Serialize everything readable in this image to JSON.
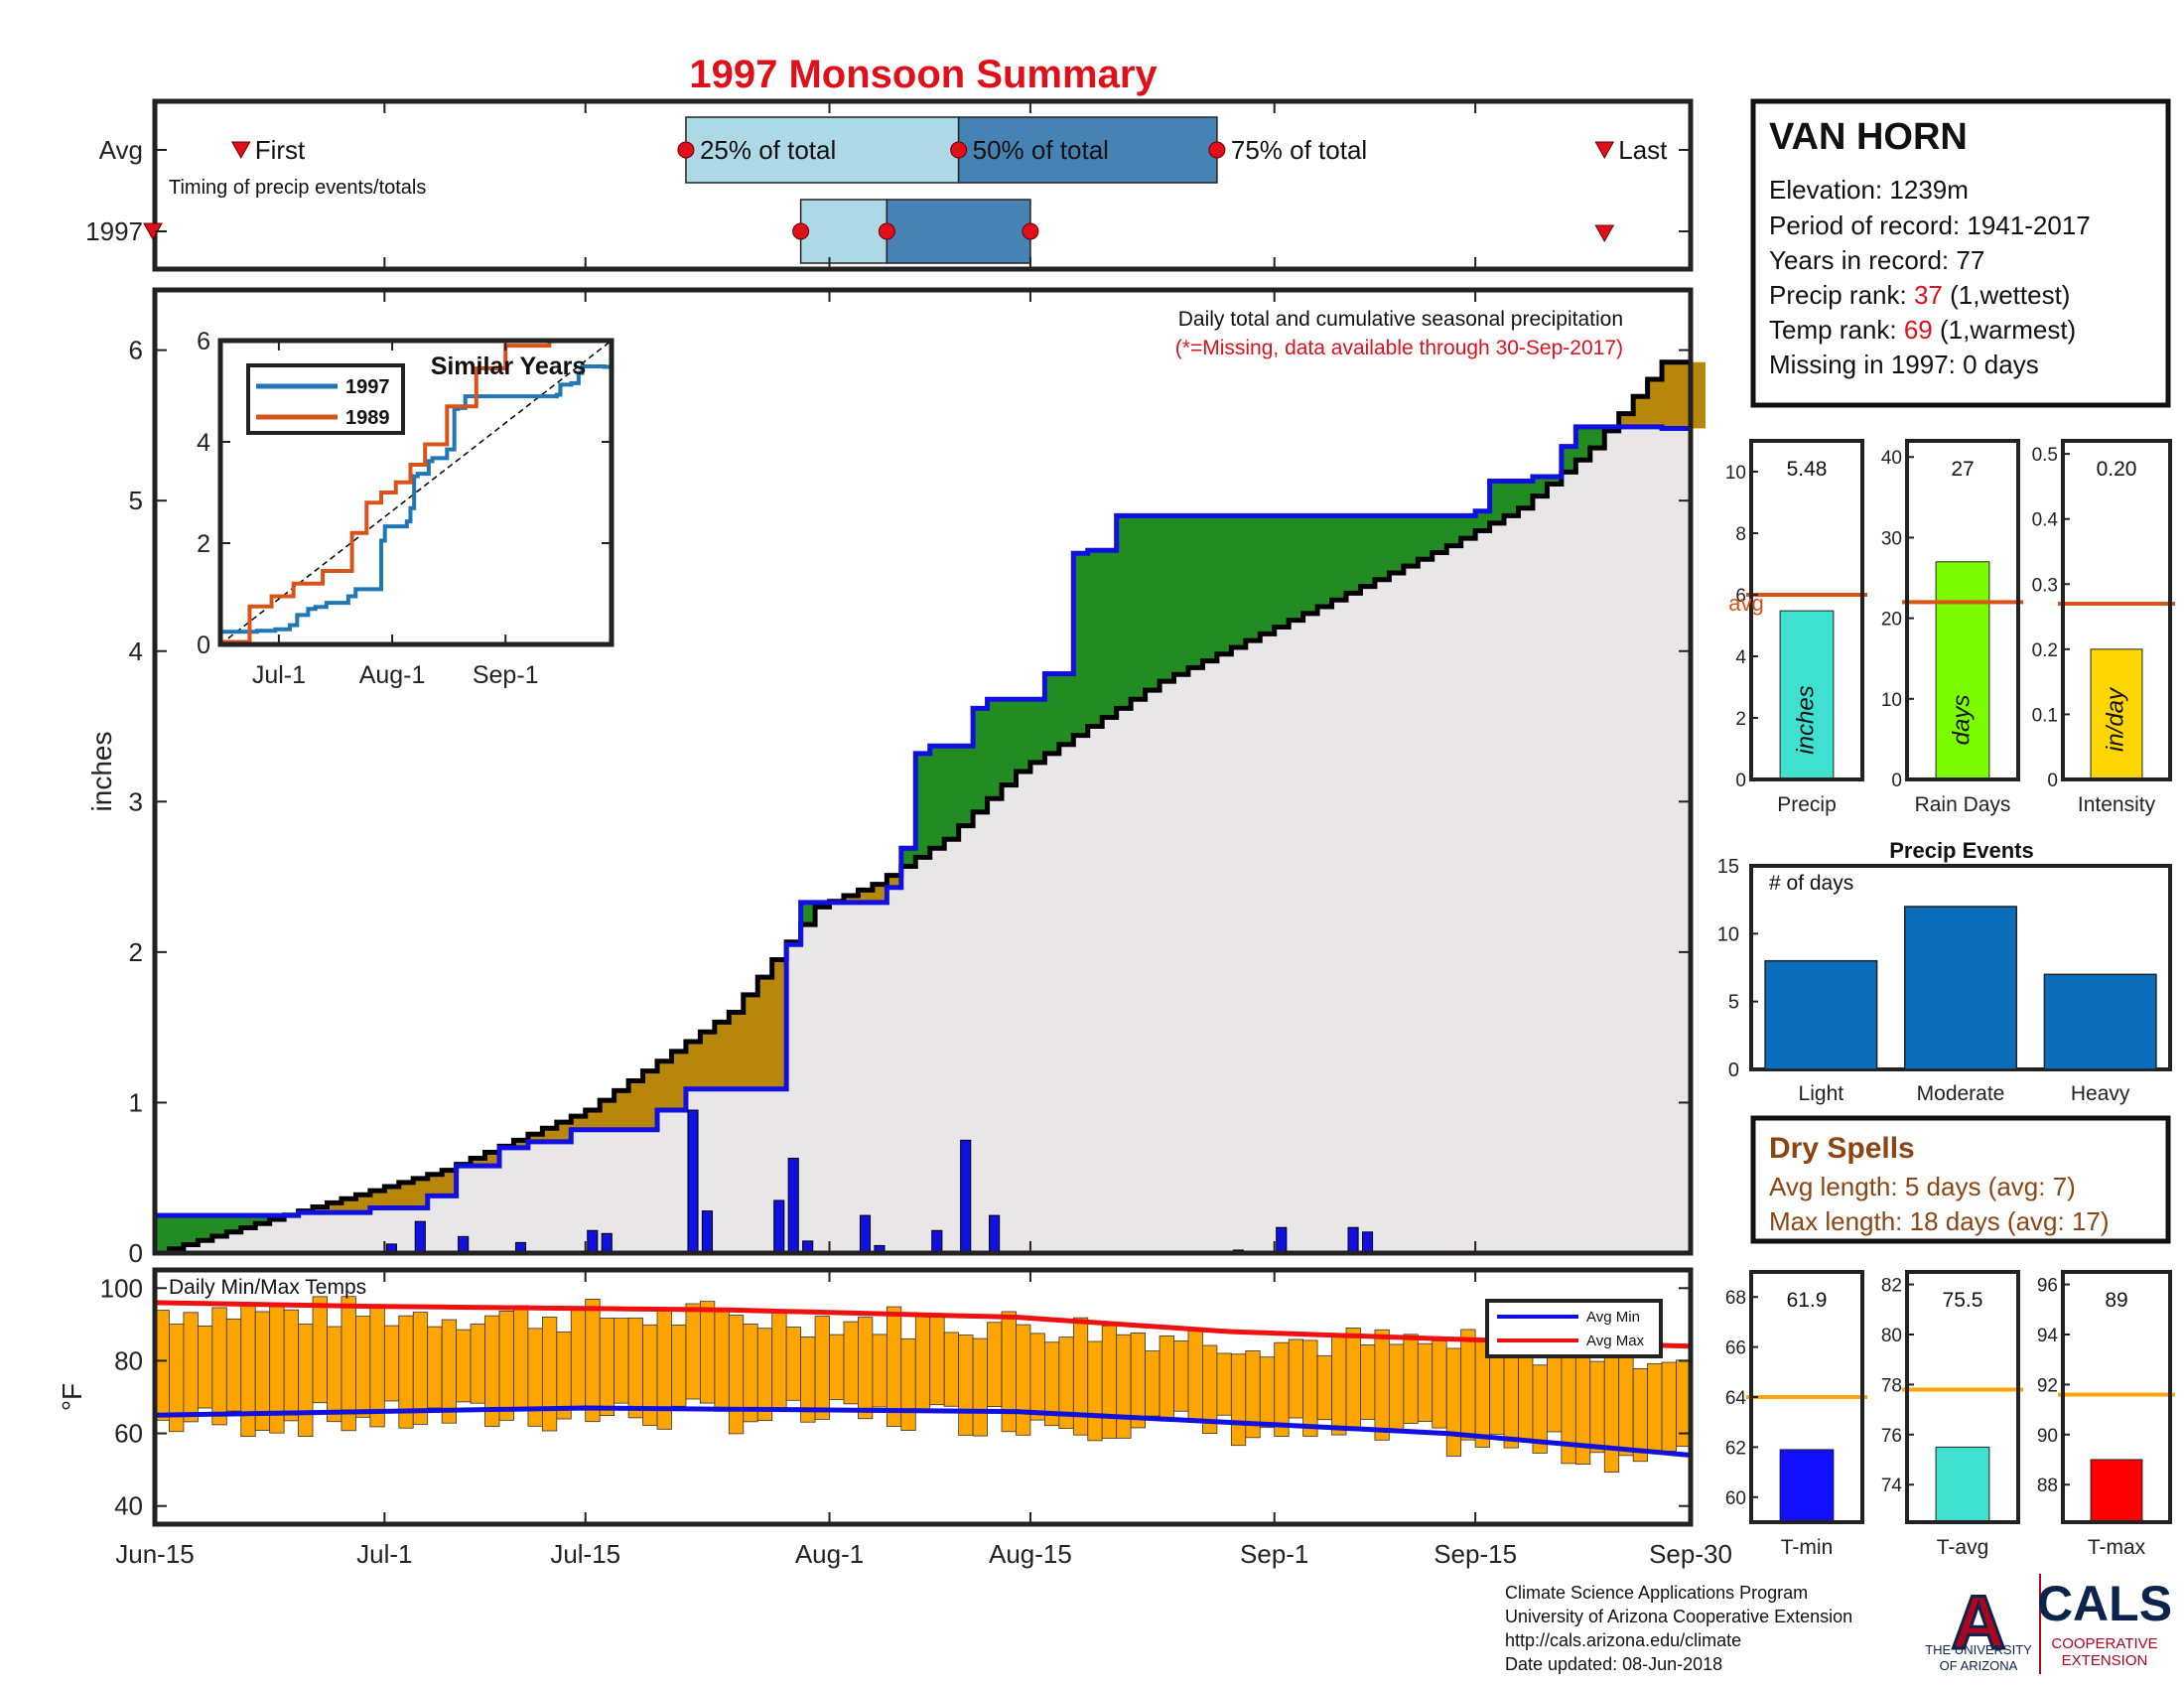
{
  "title": "1997 Monsoon Summary",
  "colors": {
    "title": "#e0101a",
    "accent_red": "#e0101a",
    "dry_brown": "#8b4513",
    "bar_blue": "#1010e0",
    "green": "#228b22",
    "tan": "#b8860b",
    "obs_line": "#1010e0",
    "avg_line": "#000000"
  },
  "station": {
    "name": "VAN HORN",
    "elev_label": "Elevation: 1239m",
    "record_label": "Period of record: 1941-2017",
    "years_label": "Years in record: 77",
    "precip_rank_prefix": "Precip rank: ",
    "precip_rank": "37",
    "precip_rank_suffix": " (1,wettest)",
    "temp_rank_prefix": "Temp rank: ",
    "temp_rank": "69",
    "temp_rank_suffix": " (1,warmest)",
    "missing_label": "Missing in 1997: 0 days"
  },
  "dry_spells": {
    "title": "Dry Spells",
    "avg_label": "Avg length: 5 days (avg: 7)",
    "max_label": "Max length: 18 days (avg: 17)"
  },
  "footer": {
    "line1": "Climate Science Applications Program",
    "line2": "University of Arizona Cooperative Extension",
    "line3": "http://cals.arizona.edu/climate",
    "line4": " Date updated: 08-Jun-2018",
    "ua_logo": "A",
    "ua_text1": "THE UNIVERSITY",
    "ua_text2": "OF ARIZONA",
    "cals": "CALS",
    "cals_sub1": "COOPERATIVE",
    "cals_sub2": "EXTENSION"
  },
  "chart_data": [
    {
      "id": "timing",
      "type": "box",
      "subtitle": "Timing of precip events/totals",
      "rows": [
        "Avg",
        "1997"
      ],
      "labels": {
        "first": "First",
        "p25": "25% of total",
        "p50": "50% of total",
        "p75": "75% of total",
        "last": "Last"
      },
      "avg": {
        "first": "Jun-21",
        "p25": "Jul-22",
        "p50": "Aug-10",
        "p75": "Aug-28",
        "last": "Sep-24"
      },
      "obs_1997": {
        "first": "Jun-15",
        "p25": "Jul-30",
        "p50": "Aug-5",
        "p75": "Aug-15",
        "last": "Sep-24"
      }
    },
    {
      "id": "cumulative",
      "type": "area",
      "ylabel": "inches",
      "ylim": [
        0,
        6.4
      ],
      "yticks": [
        0,
        1,
        2,
        3,
        4,
        5,
        6
      ],
      "xticks": [
        "Jun-15",
        "Jul-1",
        "Jul-15",
        "Aug-1",
        "Aug-15",
        "Sep-1",
        "Sep-15",
        "Sep-30"
      ],
      "annotation": "Daily total and cumulative seasonal precipitation",
      "annotation_note": "(*=Missing, data available through 30-Sep-2017)",
      "observed_steps": [
        [
          0,
          0.25
        ],
        [
          10,
          0.27
        ],
        [
          15,
          0.3
        ],
        [
          19,
          0.38
        ],
        [
          21,
          0.58
        ],
        [
          24,
          0.7
        ],
        [
          26,
          0.74
        ],
        [
          29,
          0.82
        ],
        [
          35,
          0.95
        ],
        [
          37,
          1.09
        ],
        [
          44,
          2.05
        ],
        [
          45,
          2.33
        ],
        [
          51,
          2.43
        ],
        [
          52,
          2.69
        ],
        [
          53,
          3.32
        ],
        [
          54,
          3.37
        ],
        [
          57,
          3.62
        ],
        [
          58,
          3.68
        ],
        [
          62,
          3.85
        ],
        [
          64,
          4.65
        ],
        [
          65,
          4.67
        ],
        [
          67,
          4.9
        ],
        [
          92,
          4.93
        ],
        [
          93,
          5.13
        ],
        [
          96,
          5.16
        ],
        [
          98,
          5.36
        ],
        [
          99,
          5.49
        ],
        [
          105,
          5.48
        ]
      ],
      "average_cumulative": [
        [
          0,
          0
        ],
        [
          10,
          0.28
        ],
        [
          20,
          0.55
        ],
        [
          30,
          0.95
        ],
        [
          40,
          1.6
        ],
        [
          46,
          2.3
        ],
        [
          50,
          2.45
        ],
        [
          55,
          2.75
        ],
        [
          60,
          3.2
        ],
        [
          70,
          3.8
        ],
        [
          80,
          4.25
        ],
        [
          90,
          4.7
        ],
        [
          95,
          4.95
        ],
        [
          100,
          5.35
        ],
        [
          105,
          5.92
        ]
      ],
      "daily_bars": [
        {
          "day": 16,
          "value": 0.06
        },
        {
          "day": 18,
          "value": 0.21
        },
        {
          "day": 21,
          "value": 0.11
        },
        {
          "day": 25,
          "value": 0.07
        },
        {
          "day": 30,
          "value": 0.15
        },
        {
          "day": 31,
          "value": 0.13
        },
        {
          "day": 37,
          "value": 0.95
        },
        {
          "day": 38,
          "value": 0.28
        },
        {
          "day": 43,
          "value": 0.35
        },
        {
          "day": 44,
          "value": 0.63
        },
        {
          "day": 45,
          "value": 0.08
        },
        {
          "day": 49,
          "value": 0.25
        },
        {
          "day": 50,
          "value": 0.05
        },
        {
          "day": 54,
          "value": 0.15
        },
        {
          "day": 56,
          "value": 0.75
        },
        {
          "day": 58,
          "value": 0.25
        },
        {
          "day": 75,
          "value": 0.02
        },
        {
          "day": 78,
          "value": 0.17
        },
        {
          "day": 83,
          "value": 0.17
        },
        {
          "day": 84,
          "value": 0.14
        }
      ]
    },
    {
      "id": "similar_years",
      "type": "line",
      "title": "Similar Years",
      "ylim": [
        0,
        6
      ],
      "yticks": [
        0,
        2,
        4,
        6
      ],
      "xticks": [
        "Jul-1",
        "Aug-1",
        "Sep-1"
      ],
      "series": [
        {
          "name": "1997",
          "color": "#1f77b4"
        },
        {
          "name": "1989",
          "color": "#d95319"
        }
      ]
    },
    {
      "id": "totals",
      "type": "bar",
      "panels": [
        {
          "label": "Precip",
          "value": 5.48,
          "value_text": "5.48",
          "avg": 6.0,
          "ylim": [
            0,
            11
          ],
          "yticks": [
            0,
            2,
            4,
            6,
            8,
            10
          ],
          "unit": "inches",
          "color": "#40e0d0",
          "avg_label": "avg"
        },
        {
          "label": "Rain Days",
          "value": 27,
          "value_text": "27",
          "avg": 22,
          "ylim": [
            0,
            42
          ],
          "yticks": [
            0,
            10,
            20,
            30,
            40
          ],
          "unit": "days",
          "color": "#7cfc00"
        },
        {
          "label": "Intensity",
          "value": 0.2,
          "value_text": "0.20",
          "avg": 0.27,
          "ylim": [
            0,
            0.52
          ],
          "yticks": [
            0,
            0.1,
            0.2,
            0.3,
            0.4,
            0.5
          ],
          "unit": "in/day",
          "color": "#ffd700"
        }
      ]
    },
    {
      "id": "precip_events",
      "type": "bar",
      "title": "Precip Events",
      "ylabel_inside": "# of days",
      "categories": [
        "Light",
        "Moderate",
        "Heavy"
      ],
      "values": [
        8,
        12,
        7
      ],
      "ylim": [
        0,
        15
      ],
      "yticks": [
        0,
        5,
        10,
        15
      ]
    },
    {
      "id": "daily_temps",
      "type": "bar",
      "title": "Daily Min/Max Temps",
      "ylabel": "°F",
      "ylim": [
        35,
        105
      ],
      "yticks": [
        40,
        60,
        80,
        100
      ],
      "legend": [
        "Avg Min",
        "Avg Max"
      ],
      "legend_position": "top-right",
      "avg_min": [
        [
          0,
          65
        ],
        [
          30,
          67
        ],
        [
          60,
          66
        ],
        [
          75,
          63
        ],
        [
          90,
          60
        ],
        [
          107,
          54
        ]
      ],
      "avg_max": [
        [
          0,
          96
        ],
        [
          15,
          95
        ],
        [
          40,
          94
        ],
        [
          60,
          92
        ],
        [
          75,
          88
        ],
        [
          90,
          86
        ],
        [
          107,
          84
        ]
      ]
    },
    {
      "id": "temp_summary",
      "type": "bar",
      "panels": [
        {
          "label": "T-min",
          "value": 61.9,
          "value_text": "61.9",
          "avg": 64.0,
          "ylim": [
            59,
            69
          ],
          "yticks": [
            60,
            62,
            64,
            66,
            68
          ],
          "color": "#1010ff"
        },
        {
          "label": "T-avg",
          "value": 75.5,
          "value_text": "75.5",
          "avg": 77.8,
          "ylim": [
            72.5,
            82.5
          ],
          "yticks": [
            74,
            76,
            78,
            80,
            82
          ],
          "color": "#40e0d0"
        },
        {
          "label": "T-max",
          "value": 89.0,
          "value_text": "89",
          "avg": 91.6,
          "ylim": [
            86.5,
            96.5
          ],
          "yticks": [
            88,
            90,
            92,
            94,
            96
          ],
          "color": "#ff0000"
        }
      ]
    }
  ]
}
